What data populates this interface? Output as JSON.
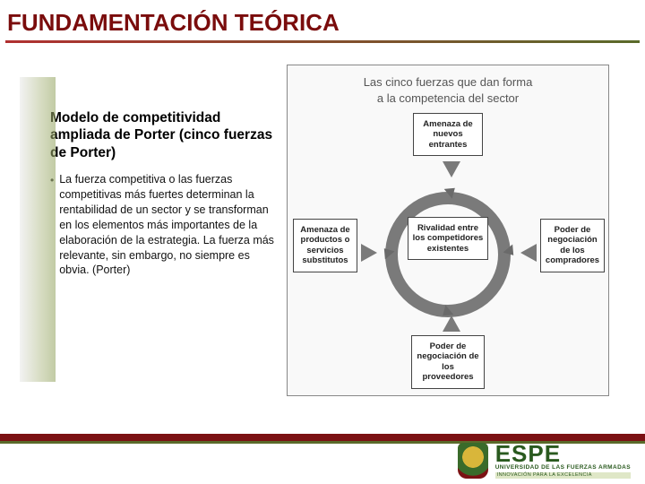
{
  "colors": {
    "title": "#7a0c0c",
    "underline_left": "#b03030",
    "underline_right": "#5a6a2a",
    "footer_bar": "#7b1113",
    "footer_accent": "#5a6a2a",
    "ring": "#7a7a7a",
    "arrow": "#7a7a7a",
    "box_border": "#444444",
    "diagram_bg": "#f9f9f9",
    "logo_green": "#2a5a1f"
  },
  "title": "FUNDAMENTACIÓN TEÓRICA",
  "left": {
    "subtitle": "Modelo de competitividad ampliada de Porter (cinco fuerzas de Porter)",
    "bullet": "La fuerza competitiva o las fuerzas competitivas más fuertes determinan la rentabilidad de un sector y se transforman en los elementos más importantes de la elaboración de la estrategia. La fuerza más relevante, sin embargo, no siempre es obvia. (Porter)"
  },
  "diagram": {
    "type": "flowchart",
    "title_line1": "Las cinco fuerzas que dan forma",
    "title_line2": "a la competencia del sector",
    "nodes": {
      "top": "Amenaza de nuevos entrantes",
      "left": "Amenaza de productos o servicios substitutos",
      "center": "Rivalidad entre los competidores existentes",
      "right": "Poder de negociación de los compradores",
      "bottom": "Poder de negociación de los proveedores"
    }
  },
  "logo": {
    "main": "ESPE",
    "sub": "UNIVERSIDAD DE LAS FUERZAS ARMADAS",
    "tag": "INNOVACIÓN PARA LA EXCELENCIA"
  }
}
